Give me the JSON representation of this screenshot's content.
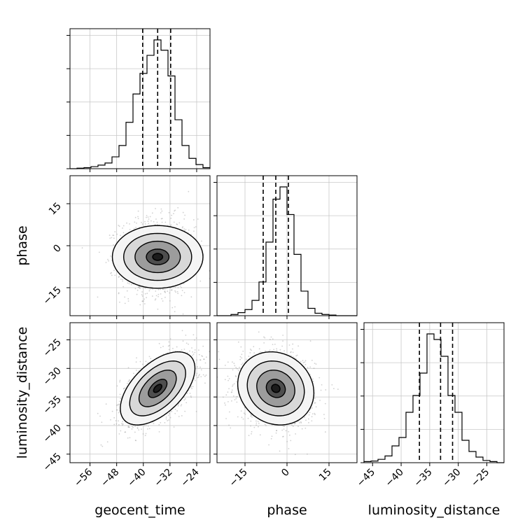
{
  "chart_data": {
    "type": "corner",
    "parameters": [
      "geocent_time",
      "phase",
      "luminosity_distance"
    ],
    "axis_labels": {
      "geocent_time": "geocent_time",
      "phase": "phase",
      "luminosity_distance": "luminosity_distance"
    },
    "ranges": {
      "geocent_time": [
        -62,
        -20
      ],
      "phase": [
        -25,
        25
      ],
      "luminosity_distance": [
        -46.5,
        -22
      ]
    },
    "ticks": {
      "geocent_time": [
        -56,
        -48,
        -40,
        -32,
        -24
      ],
      "phase": [
        -15,
        0,
        15
      ],
      "luminosity_distance": [
        -45,
        -40,
        -35,
        -30,
        -25
      ]
    },
    "tick_labels": {
      "geocent_time": [
        "−56",
        "−48",
        "−40",
        "−32",
        "−24"
      ],
      "phase": [
        "−15",
        "0",
        "15"
      ],
      "luminosity_distance": [
        "−45",
        "−40",
        "−35",
        "−30",
        "−25"
      ]
    },
    "quantiles": {
      "geocent_time": [
        -40.2,
        -35.7,
        -31.8
      ],
      "phase": [
        -8.5,
        -4,
        0.5
      ],
      "luminosity_distance": [
        -36.8,
        -33.1,
        -31.0
      ]
    },
    "histograms": {
      "geocent_time": {
        "bin_edges": [
          -62,
          -59.9,
          -57.8,
          -55.7,
          -53.6,
          -51.5,
          -49.4,
          -47.3,
          -45.2,
          -43.1,
          -41,
          -38.9,
          -36.8,
          -34.7,
          -32.6,
          -30.5,
          -28.4,
          -26.3,
          -24.2,
          -22.1,
          -20
        ],
        "counts": [
          0,
          1,
          2,
          4,
          7,
          11,
          23,
          45,
          90,
          145,
          185,
          220,
          250,
          230,
          180,
          95,
          45,
          20,
          8,
          2
        ]
      },
      "phase": {
        "bin_edges": [
          -25,
          -22.5,
          -20,
          -17.5,
          -15,
          -12.5,
          -10,
          -7.5,
          -5,
          -2.5,
          0,
          2.5,
          5,
          7.5,
          10,
          12.5,
          15,
          17.5,
          20,
          22.5,
          25
        ],
        "counts": [
          0,
          0,
          2,
          5,
          10,
          25,
          55,
          120,
          190,
          210,
          165,
          100,
          40,
          12,
          4,
          2,
          1,
          0,
          0,
          0
        ]
      },
      "luminosity_distance": {
        "bin_edges": [
          -46.5,
          -45.275,
          -44.05,
          -42.825,
          -41.6,
          -40.375,
          -39.15,
          -37.925,
          -36.7,
          -35.475,
          -34.25,
          -33.025,
          -31.8,
          -30.575,
          -29.35,
          -28.125,
          -26.9,
          -25.675,
          -24.45,
          -23.225,
          -22
        ],
        "counts": [
          2,
          3,
          6,
          12,
          30,
          45,
          90,
          120,
          160,
          230,
          220,
          190,
          120,
          90,
          40,
          20,
          10,
          4,
          2,
          0
        ]
      }
    },
    "pairs": [
      {
        "x": "geocent_time",
        "y": "phase",
        "mean": [
          -35.7,
          -4
        ],
        "sigma": [
          5.6,
          6.8
        ],
        "rho": 0
      },
      {
        "x": "geocent_time",
        "y": "luminosity_distance",
        "mean": [
          -35.7,
          -33.5
        ],
        "sigma": [
          5.6,
          3.2
        ],
        "rho": 0.55
      },
      {
        "x": "phase",
        "y": "luminosity_distance",
        "mean": [
          -4,
          -33.5
        ],
        "sigma": [
          6.8,
          3.2
        ],
        "rho": -0.12
      }
    ],
    "contour_levels_sigma": [
      0.5,
      1.0,
      1.5,
      2.0
    ],
    "grid": true,
    "legend": "none"
  }
}
